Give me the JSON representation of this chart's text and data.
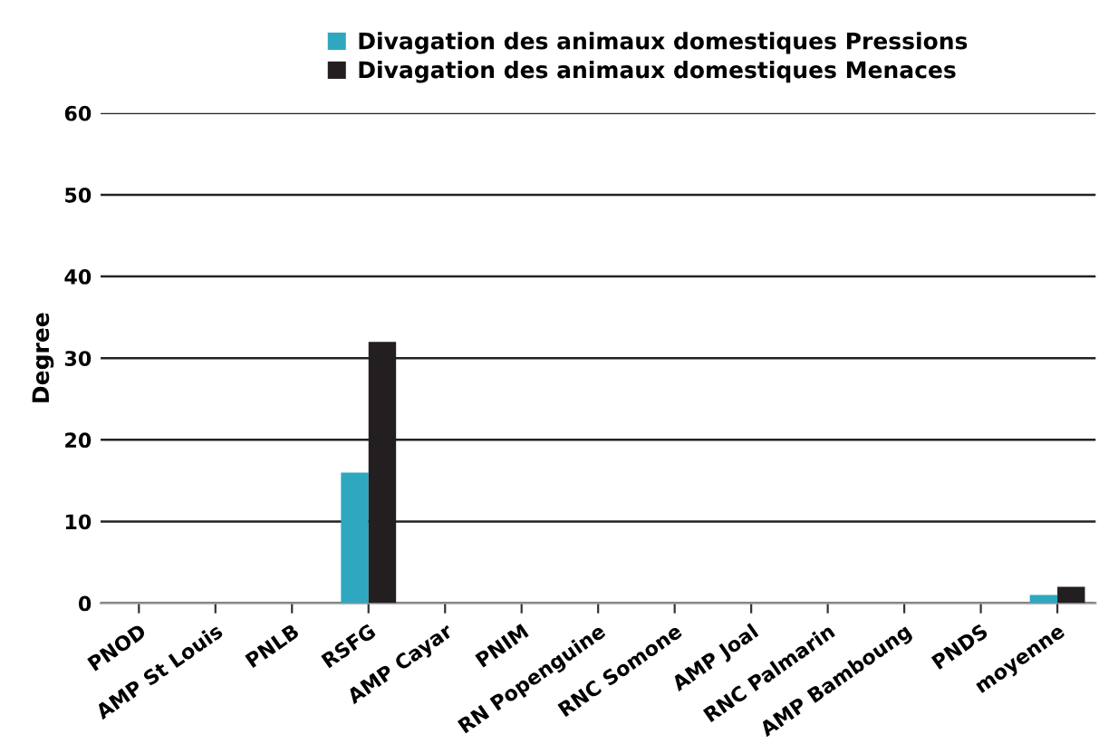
{
  "chart_data": {
    "type": "bar",
    "ylabel": "Degree",
    "categories": [
      "PNOD",
      "AMP St Louis",
      "PNLB",
      "RSFG",
      "AMP Cayar",
      "PNIM",
      "RN Popenguine",
      "RNC Somone",
      "AMP Joal",
      "RNC Palmarin",
      "AMP Bamboung",
      "PNDS",
      "moyenne"
    ],
    "series": [
      {
        "name": "Divagation des animaux domestiques Pressions",
        "color": "#2ea8c0",
        "values": [
          0,
          0,
          0,
          16,
          0,
          0,
          0,
          0,
          0,
          0,
          0,
          0,
          1
        ]
      },
      {
        "name": "Divagation des animaux domestiques Menaces",
        "color": "#231f20",
        "values": [
          0,
          0,
          0,
          32,
          0,
          0,
          0,
          0,
          0,
          0,
          0,
          0,
          2
        ]
      }
    ],
    "ylim": [
      0,
      60
    ],
    "yticks": [
      0,
      10,
      20,
      30,
      40,
      50,
      60
    ],
    "grid": "y",
    "legend": "top"
  }
}
